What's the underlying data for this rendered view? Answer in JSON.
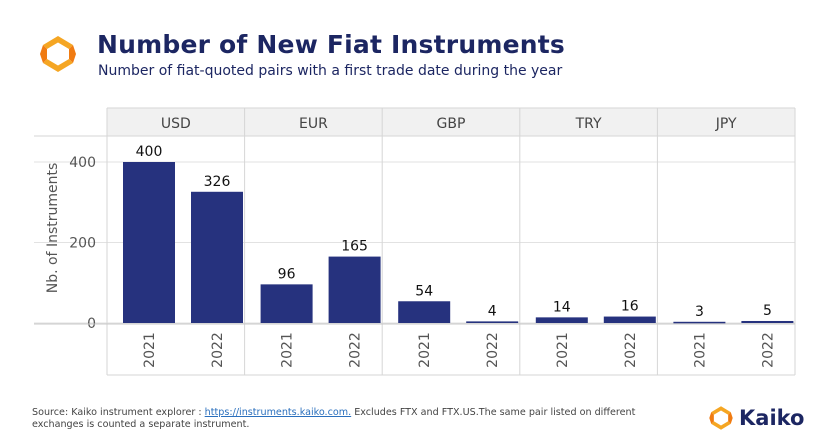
{
  "header": {
    "title": "Number of New Fiat Instruments",
    "subtitle": "Number of fiat-quoted pairs with a first trade date during the year"
  },
  "footer": {
    "source_prefix": "Source: Kaiko instrument explorer : ",
    "source_link": "https://instruments.kaiko.com.",
    "source_suffix": " Excludes FTX and FTX.US.The same pair listed on different exchanges is counted a separate instrument.",
    "brand": "Kaiko"
  },
  "colors": {
    "bar": "#26327e",
    "title": "#1c2662",
    "logo_orange": "#f5a623",
    "logo_deep": "#f07b12"
  },
  "chart_data": {
    "type": "bar",
    "title": "Number of New Fiat Instruments",
    "subtitle": "Number of fiat-quoted pairs with a first trade date during the year",
    "ylabel": "Nb. of Instruments",
    "xlabel": "",
    "ylim": [
      0,
      460
    ],
    "yticks": [
      0,
      200,
      400
    ],
    "grid": true,
    "facets": [
      {
        "name": "USD",
        "categories": [
          "2021",
          "2022"
        ],
        "values": [
          400,
          326
        ]
      },
      {
        "name": "EUR",
        "categories": [
          "2021",
          "2022"
        ],
        "values": [
          96,
          165
        ]
      },
      {
        "name": "GBP",
        "categories": [
          "2021",
          "2022"
        ],
        "values": [
          54,
          4
        ]
      },
      {
        "name": "TRY",
        "categories": [
          "2021",
          "2022"
        ],
        "values": [
          14,
          16
        ]
      },
      {
        "name": "JPY",
        "categories": [
          "2021",
          "2022"
        ],
        "values": [
          3,
          5
        ]
      }
    ]
  }
}
